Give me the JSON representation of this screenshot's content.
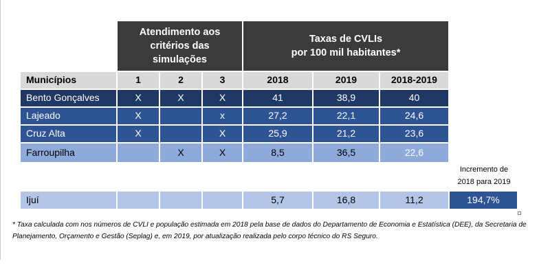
{
  "header": {
    "group1": [
      "Atendimento aos",
      "critérios das",
      "simulações"
    ],
    "group2": [
      "Taxas de CVLIs",
      "por 100 mil habitantes*"
    ]
  },
  "columns": [
    "Municípios",
    "1",
    "2",
    "3",
    "2018",
    "2019",
    "2018-2019"
  ],
  "rows": [
    {
      "name": "Bento Gonçalves",
      "c1": "X",
      "c2": "X",
      "c3": "X",
      "y2018": "41",
      "y2019": "38,9",
      "y1819": "40"
    },
    {
      "name": "Lajeado",
      "c1": "X",
      "c2": "",
      "c3": "x",
      "y2018": "27,2",
      "y2019": "22,1",
      "y1819": "24,6"
    },
    {
      "name": "Cruz Alta",
      "c1": "X",
      "c2": "",
      "c3": "X",
      "y2018": "25,9",
      "y2019": "21,2",
      "y1819": "23,6"
    },
    {
      "name": "Farroupilha",
      "c1": "",
      "c2": "X",
      "c3": "X",
      "y2018": "8,5",
      "y2019": "36,5",
      "y1819": "22,6"
    }
  ],
  "increment": {
    "label_line1": "Incremento de",
    "label_line2": "2018 para 2019",
    "value": "194,7%"
  },
  "ijui": {
    "name": "Ijuí",
    "c1": "",
    "c2": "",
    "c3": "",
    "y2018": "5,7",
    "y2019": "16,8",
    "y1819": "11,2"
  },
  "footnote": "* Taxa calculada com nos números de CVLI e população estimada em 2018 pela base de dados do Departamento de Economia e Estatística (DEE), da Secretaria de Planejamento, Orçamento e Gestão (Seplag) e, em 2019, por atualização realizada pelo corpo técnico do RS Seguro."
}
